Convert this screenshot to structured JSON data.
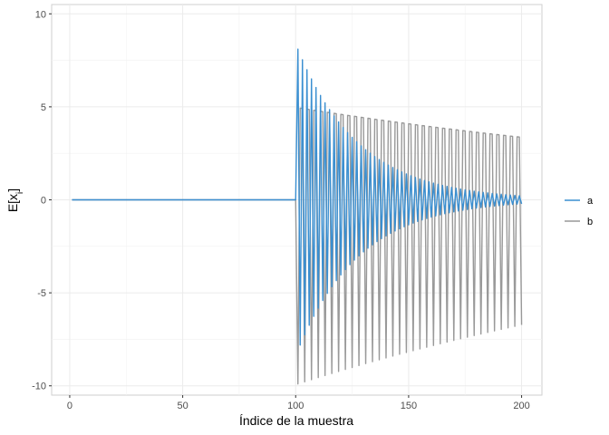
{
  "chart_data": {
    "type": "line",
    "title": "",
    "xlabel": "Índice de la muestra",
    "ylabel_main": "E[x",
    "ylabel_sub": "i",
    "ylabel_close": "]",
    "xlim": [
      -8,
      209
    ],
    "ylim": [
      -10.5,
      10.5
    ],
    "x_ticks": [
      0,
      50,
      100,
      150,
      200
    ],
    "x_tick_labels": [
      "0",
      "50",
      "100",
      "150",
      "200"
    ],
    "y_ticks": [
      -10,
      -5,
      0,
      5,
      10
    ],
    "y_tick_labels": [
      "-10",
      "-5",
      "0",
      "5",
      "10"
    ],
    "grid": true,
    "legend_position": "right",
    "x_start": 1,
    "x_end": 200,
    "step_at": 101,
    "series": [
      {
        "name": "a",
        "color": "#3a8fd1",
        "pre_value": 0,
        "oscillation": {
          "period": 2,
          "first_value": 8.1,
          "decay_per_step": 0.964
        }
      },
      {
        "name": "b",
        "color": "#999999",
        "pre_value": 0,
        "oscillation": {
          "period": 3,
          "first_value": -9.9,
          "decay_per_step": 0.9961
        }
      }
    ]
  }
}
